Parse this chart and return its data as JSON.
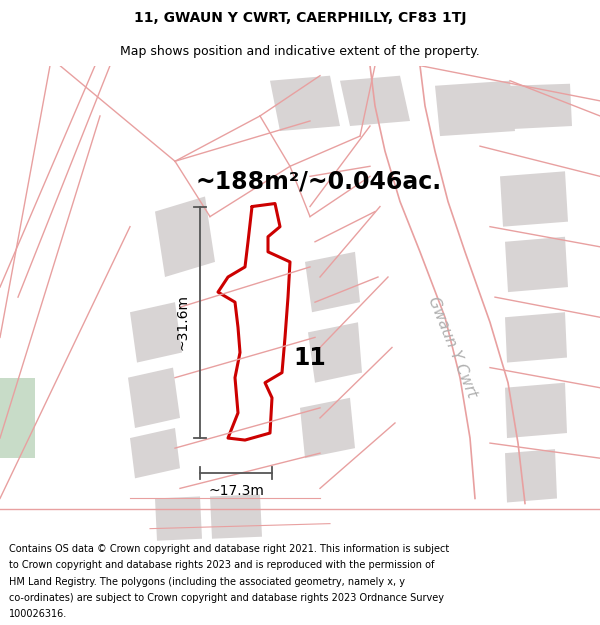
{
  "title_line1": "11, GWAUN Y CWRT, CAERPHILLY, CF83 1TJ",
  "title_line2": "Map shows position and indicative extent of the property.",
  "area_text": "~188m²/~0.046ac.",
  "dim_width": "~17.3m",
  "dim_height": "~31.6m",
  "plot_number": "11",
  "street_name": "Gwaun Y Cwrt",
  "footer_text": "Contains OS data © Crown copyright and database right 2021. This information is subject to Crown copyright and database rights 2023 and is reproduced with the permission of HM Land Registry. The polygons (including the associated geometry, namely x, y co-ordinates) are subject to Crown copyright and database rights 2023 Ordnance Survey 100026316.",
  "bg_color": "#ffffff",
  "road_color": "#e8a0a0",
  "building_color": "#d8d4d4",
  "highlight_color": "#cc0000",
  "dim_color": "#555555",
  "green_color": "#c8dcc8",
  "title_fontsize": 10,
  "subtitle_fontsize": 9,
  "footer_fontsize": 7,
  "area_fontsize": 17,
  "plot_num_fontsize": 17,
  "street_fontsize": 11,
  "street_color": "#b0b0b0"
}
